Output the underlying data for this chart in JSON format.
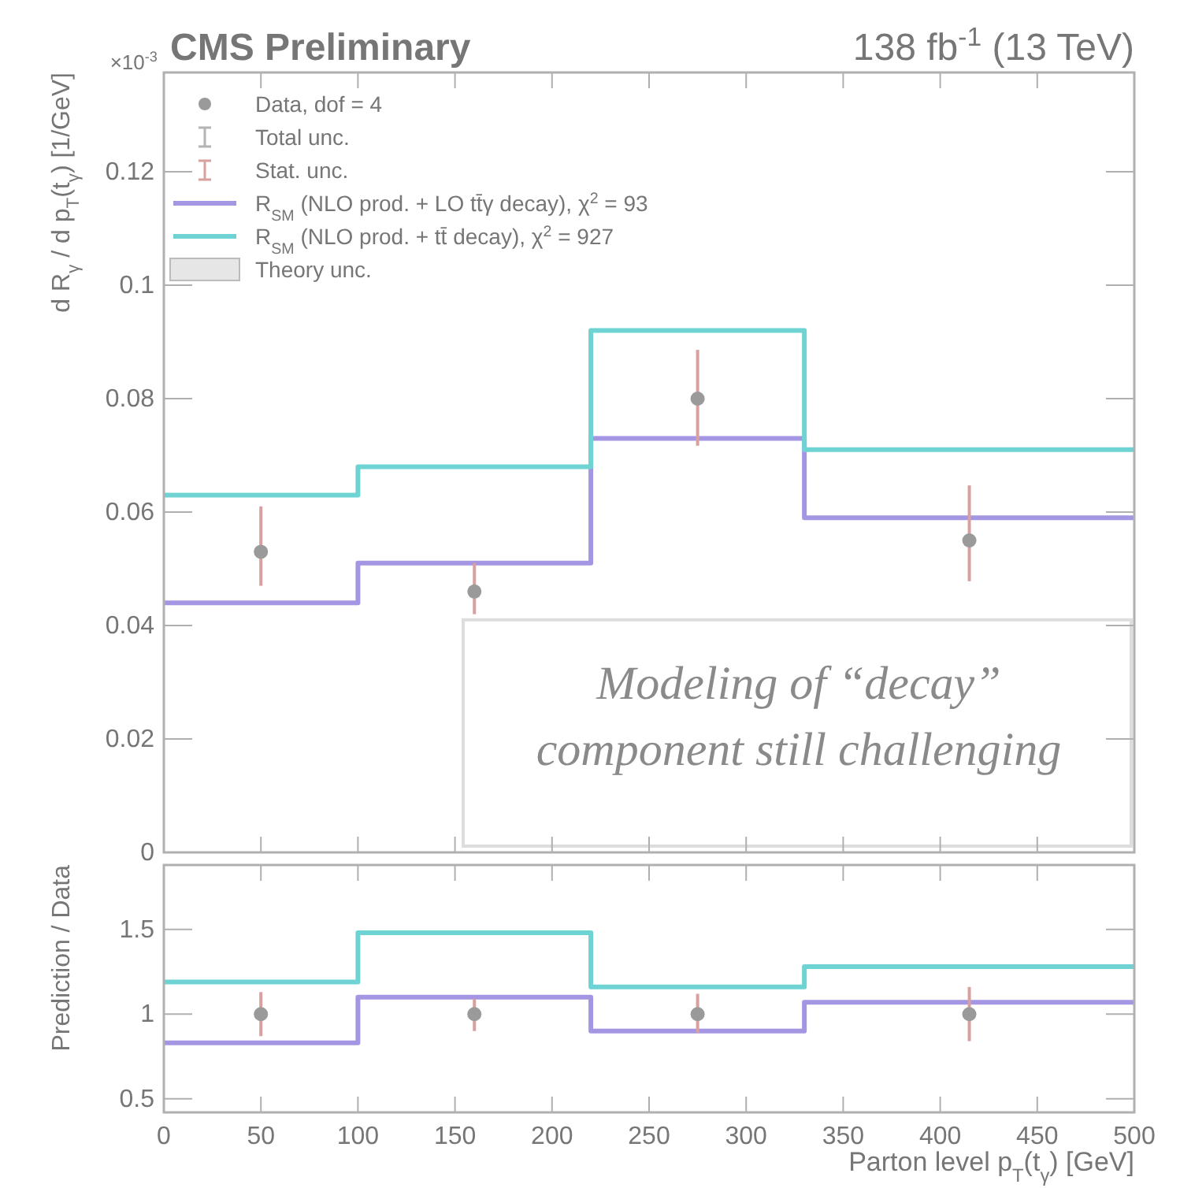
{
  "chart_data": [
    {
      "type": "scatter",
      "title": "CMS Preliminary",
      "subtitle": "138 fb$^{-1}$ (13 TeV)",
      "ylabel": "d R$_{γ}$ / d p$_{T}$(t$_{γ}$) [1/GeV]",
      "annotations": [
        "×10$^{-3}$",
        "Total unc.",
        "Stat. unc.",
        "Theory unc.",
        "Modeling of “decay”\ncomponent still challenging"
      ],
      "xlim": [
        0,
        500
      ],
      "xticks": [
        0,
        50,
        100,
        150,
        200,
        250,
        300,
        350,
        400,
        450,
        500
      ],
      "ylim": [
        0,
        0.1375
      ],
      "yticks": [
        0,
        0.02,
        0.04,
        0.06,
        0.08,
        0.1,
        0.12
      ],
      "tick_labels": "y",
      "legend": "top left",
      "grid": false,
      "series": [
        {
          "name": "Data, dof = 4",
          "type": "scatter",
          "marker": "circle",
          "color": "#9a9a9a",
          "x": [
            50,
            160,
            275,
            415
          ],
          "values": [
            0.053,
            0.046,
            0.08,
            0.055
          ],
          "errors": [
            [
              0.047,
              0.061
            ],
            [
              0.042,
              0.051
            ],
            [
              0.0717,
              0.0886
            ],
            [
              0.0478,
              0.0647
            ]
          ]
        },
        {
          "name": "R$_{SM}$ (NLO prod. + LO tt̄γ decay), χ$^{2}$ = 93",
          "type": "step",
          "color": "#a596e4",
          "x": [
            0,
            100,
            220,
            330,
            500
          ],
          "values": [
            0.044,
            0.051,
            0.073,
            0.059,
            0.059
          ]
        },
        {
          "name": "R$_{SM}$ (NLO prod. + tt̄ decay), χ$^{2}$ = 927",
          "type": "step",
          "color": "#6fd3d3",
          "x": [
            0,
            100,
            220,
            330,
            500
          ],
          "values": [
            0.063,
            0.068,
            0.092,
            0.071,
            0.071
          ]
        }
      ]
    },
    {
      "type": "scatter",
      "xlabel": "Parton level p$_{T}$(t$_{γ}$) [GeV]",
      "ylabel": "Prediction / Data",
      "xlim": [
        0,
        500
      ],
      "xticks": [
        0,
        50,
        100,
        150,
        200,
        250,
        300,
        350,
        400,
        450,
        500
      ],
      "ylim": [
        0.42,
        1.88
      ],
      "yticks": [
        0.5,
        1,
        1.5
      ],
      "grid": false,
      "series": [
        {
          "type": "scatter",
          "marker": "circle",
          "color": "#9a9a9a",
          "x": [
            50,
            160,
            275,
            415
          ],
          "values": [
            1,
            1,
            1,
            1
          ],
          "errors": [
            [
              0.87,
              1.13
            ],
            [
              0.9,
              1.09
            ],
            [
              0.89,
              1.12
            ],
            [
              0.84,
              1.16
            ]
          ]
        },
        {
          "type": "step",
          "color": "#a596e4",
          "x": [
            0,
            100,
            220,
            330,
            500
          ],
          "values": [
            0.83,
            1.1,
            0.9,
            1.07,
            1.07
          ]
        },
        {
          "type": "step",
          "color": "#6fd3d3",
          "x": [
            0,
            100,
            220,
            330,
            500
          ],
          "values": [
            1.19,
            1.48,
            1.16,
            1.28,
            1.28
          ]
        }
      ]
    }
  ]
}
